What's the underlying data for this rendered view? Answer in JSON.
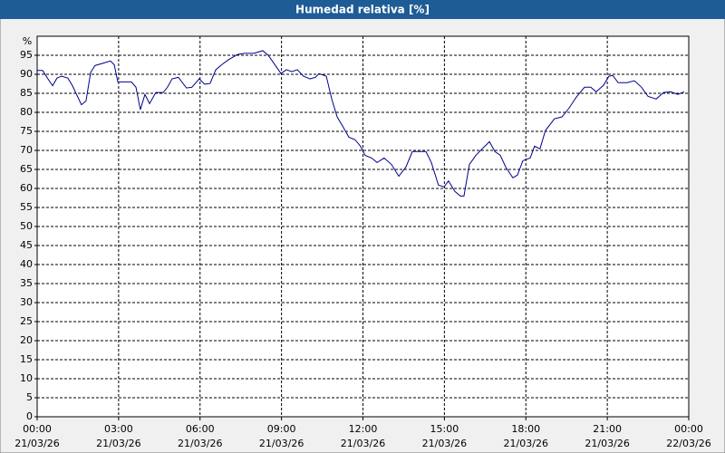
{
  "chart_data": {
    "type": "line",
    "title": "Humedad relativa [%]",
    "y_label": "%",
    "xlim": [
      0,
      24
    ],
    "ylim": [
      0,
      100
    ],
    "xticks": [
      {
        "value": 0,
        "label": "00:00",
        "sublabel": "21/03/26"
      },
      {
        "value": 3,
        "label": "03:00",
        "sublabel": "21/03/26"
      },
      {
        "value": 6,
        "label": "06:00",
        "sublabel": "21/03/26"
      },
      {
        "value": 9,
        "label": "09:00",
        "sublabel": "21/03/26"
      },
      {
        "value": 12,
        "label": "12:00",
        "sublabel": "21/03/26"
      },
      {
        "value": 15,
        "label": "15:00",
        "sublabel": "21/03/26"
      },
      {
        "value": 18,
        "label": "18:00",
        "sublabel": "21/03/26"
      },
      {
        "value": 21,
        "label": "21:00",
        "sublabel": "21/03/26"
      },
      {
        "value": 24,
        "label": "00:00",
        "sublabel": "22/03/26"
      }
    ],
    "yticks": [
      0,
      5,
      10,
      15,
      20,
      25,
      30,
      35,
      40,
      45,
      50,
      55,
      60,
      65,
      70,
      75,
      80,
      85,
      90,
      95
    ],
    "grid": true,
    "series": [
      {
        "color": "#00008b",
        "x": [
          0,
          0.2,
          0.47,
          0.57,
          0.73,
          0.9,
          1.13,
          1.3,
          1.63,
          1.8,
          1.97,
          2.13,
          2.47,
          2.7,
          2.84,
          2.97,
          3.14,
          3.47,
          3.64,
          3.8,
          3.97,
          4.14,
          4.37,
          4.64,
          4.8,
          4.97,
          5.2,
          5.5,
          5.7,
          5.97,
          6.17,
          6.37,
          6.58,
          6.81,
          7.04,
          7.38,
          7.64,
          7.98,
          8.31,
          8.51,
          8.71,
          8.98,
          9.18,
          9.38,
          9.58,
          9.81,
          10.05,
          10.25,
          10.38,
          10.65,
          10.85,
          11.05,
          11.25,
          11.48,
          11.71,
          11.91,
          12.08,
          12.32,
          12.52,
          12.78,
          13.05,
          13.32,
          13.58,
          13.82,
          14.05,
          14.32,
          14.52,
          14.78,
          14.99,
          15.15,
          15.39,
          15.59,
          15.72,
          15.92,
          16.16,
          16.39,
          16.66,
          16.86,
          17.06,
          17.26,
          17.52,
          17.69,
          17.89,
          18.16,
          18.32,
          18.52,
          18.72,
          19.05,
          19.33,
          19.59,
          19.86,
          20.16,
          20.39,
          20.59,
          20.86,
          21.06,
          21.2,
          21.4,
          21.73,
          22,
          22.26,
          22.5,
          22.8,
          23.07,
          23.33,
          23.6,
          23.83
        ],
        "values": [
          91,
          91,
          88,
          87,
          89,
          89.5,
          89,
          87,
          82,
          83,
          90.5,
          92.3,
          93,
          93.5,
          92.5,
          88,
          88,
          88,
          86.6,
          80.7,
          84.7,
          82.3,
          85.2,
          85.2,
          86.6,
          88.8,
          89.2,
          86.4,
          86.6,
          88.8,
          87.4,
          87.6,
          91.2,
          92.6,
          93.8,
          95.2,
          95.5,
          95.5,
          96.2,
          95,
          93,
          90.2,
          91.2,
          90.7,
          91.2,
          89.5,
          88.8,
          89.2,
          90.2,
          89.5,
          83.5,
          78.8,
          76.4,
          73.5,
          72.8,
          71.1,
          68.7,
          68,
          66.8,
          68,
          66.3,
          63.2,
          65.6,
          69.7,
          69.7,
          69.7,
          66.8,
          60.9,
          60.4,
          62,
          59.2,
          58,
          58,
          66.3,
          68.7,
          70.4,
          72.3,
          69.7,
          68.7,
          65.6,
          62.8,
          63.5,
          67.3,
          68,
          71.1,
          70.4,
          75.2,
          78.3,
          78.8,
          81.1,
          84,
          86.6,
          86.6,
          85.4,
          87.1,
          89.5,
          89.7,
          87.8,
          87.8,
          88.3,
          86.6,
          84.2,
          83.5,
          85.2,
          85.4,
          84.7,
          85.4
        ]
      }
    ]
  }
}
